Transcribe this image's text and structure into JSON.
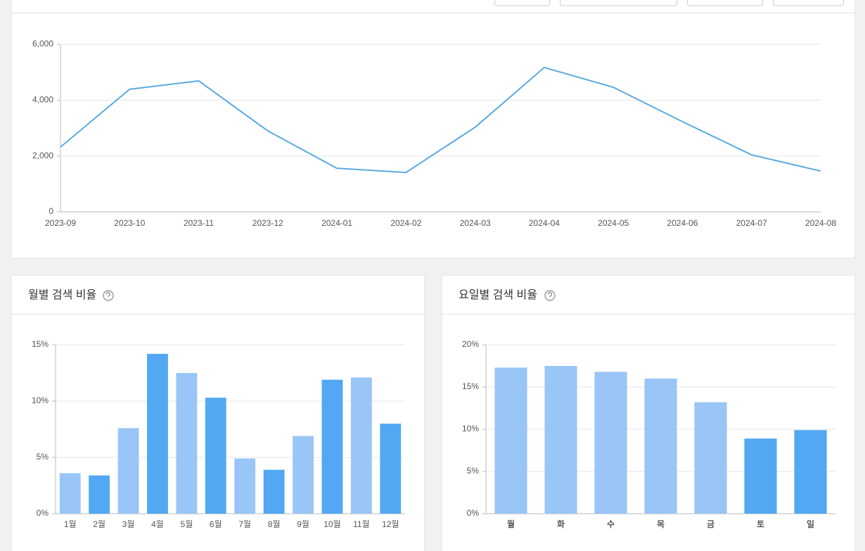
{
  "chart_data": [
    {
      "type": "line",
      "color": "#5aaae0",
      "categories": [
        "2023-09",
        "2023-10",
        "2023-11",
        "2023-12",
        "2024-01",
        "2024-02",
        "2024-03",
        "2024-04",
        "2024-05",
        "2024-06",
        "2024-07",
        "2024-08"
      ],
      "values": [
        2320,
        4390,
        4690,
        2900,
        1560,
        1410,
        3030,
        5170,
        4460,
        3230,
        2040,
        1460
      ],
      "ylim": [
        0,
        6000
      ],
      "yticks": [
        0,
        {
          "value": 2000,
          "label": "2,000"
        },
        {
          "value": 4000,
          "label": "4,000"
        },
        {
          "value": 6000,
          "label": "6,000"
        }
      ],
      "grid": true
    },
    {
      "type": "bar",
      "title": "월별 검색 비율",
      "categories": [
        "1월",
        "2월",
        "3월",
        "4월",
        "5월",
        "6월",
        "7월",
        "8월",
        "9월",
        "10월",
        "11월",
        "12월"
      ],
      "values": [
        3.6,
        3.4,
        7.6,
        14.2,
        12.5,
        10.3,
        4.9,
        3.9,
        6.9,
        11.9,
        12.1,
        8.0
      ],
      "colors": [
        "#99c5f7",
        "#52a8f2",
        "#99c5f7",
        "#52a8f2",
        "#99c5f7",
        "#52a8f2",
        "#99c5f7",
        "#52a8f2",
        "#99c5f7",
        "#52a8f2",
        "#99c5f7",
        "#52a8f2"
      ],
      "ylim": [
        0,
        15
      ],
      "yticks": [
        {
          "value": 0,
          "label": "0%"
        },
        {
          "value": 5,
          "label": "5%"
        },
        {
          "value": 10,
          "label": "10%"
        },
        {
          "value": 15,
          "label": "15%"
        }
      ],
      "grid": true
    },
    {
      "type": "bar",
      "title": "요일별 검색 비율",
      "categories": [
        "월",
        "화",
        "수",
        "목",
        "금",
        "토",
        "일"
      ],
      "values": [
        17.3,
        17.5,
        16.8,
        16.0,
        13.2,
        8.9,
        9.9
      ],
      "colors": [
        "#99c5f7",
        "#99c5f7",
        "#99c5f7",
        "#99c5f7",
        "#99c5f7",
        "#52a8f2",
        "#52a8f2"
      ],
      "ylim": [
        0,
        20
      ],
      "yticks": [
        {
          "value": 0,
          "label": "0%"
        },
        {
          "value": 5,
          "label": "5%"
        },
        {
          "value": 10,
          "label": "10%"
        },
        {
          "value": 15,
          "label": "15%"
        },
        {
          "value": 20,
          "label": "20%"
        }
      ],
      "grid": true
    }
  ]
}
